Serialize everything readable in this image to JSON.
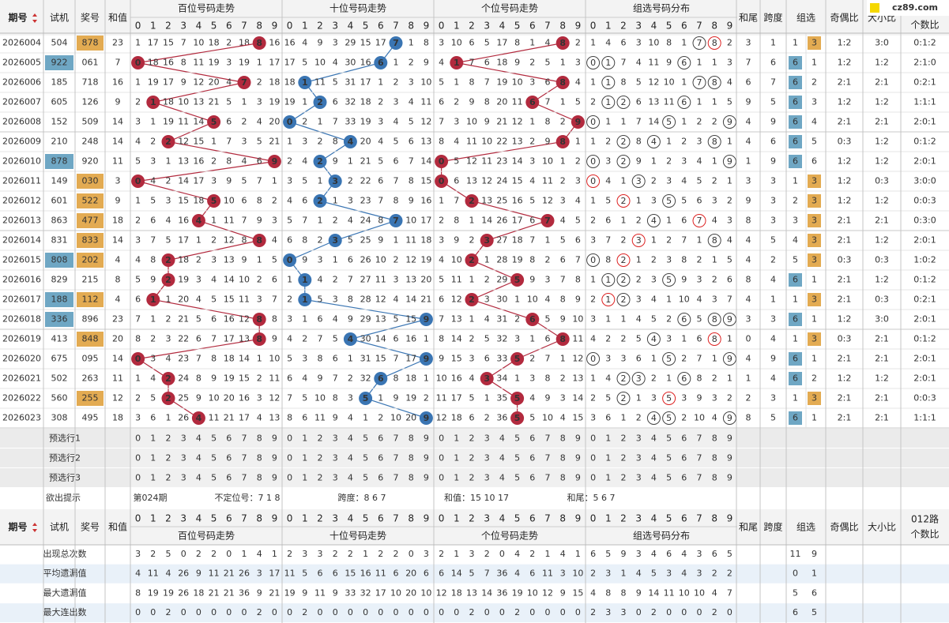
{
  "header": {
    "issue": "期号",
    "test": "试机",
    "draw": "奖号",
    "sum": "和值",
    "sections": [
      "百位号码走势",
      "十位号码走势",
      "个位号码走势",
      "组选号码分布"
    ],
    "tail": "和尾",
    "span": "跨度",
    "zx": "组选",
    "oe": "奇偶比",
    "bs": "大小比",
    "r012a": "012路",
    "r012b": "个数比",
    "logo": "cz89.com"
  },
  "digits": [
    "0",
    "1",
    "2",
    "3",
    "4",
    "5",
    "6",
    "7",
    "8",
    "9"
  ],
  "rows": [
    {
      "issue": "2026004",
      "test": "504",
      "draw": "878",
      "sum": 23,
      "bai": [
        1,
        17,
        15,
        7,
        10,
        18,
        2,
        18,
        8,
        16
      ],
      "shi": [
        16,
        4,
        9,
        3,
        29,
        15,
        17,
        7,
        1,
        8
      ],
      "ge": [
        3,
        10,
        6,
        5,
        17,
        8,
        1,
        4,
        8,
        2
      ],
      "zu": [
        1,
        4,
        6,
        3,
        10,
        8,
        1,
        7,
        8,
        2
      ],
      "tail": 3,
      "span": 1,
      "zx": [
        1,
        3
      ],
      "oe": "1:2",
      "bs": "3:0",
      "r012": "0:1:2"
    },
    {
      "issue": "2026005",
      "test": "922",
      "draw": "061",
      "sum": 7,
      "bai": [
        0,
        18,
        16,
        8,
        11,
        19,
        3,
        19,
        1,
        17
      ],
      "shi": [
        17,
        5,
        10,
        4,
        30,
        16,
        6,
        1,
        2,
        9
      ],
      "ge": [
        4,
        1,
        7,
        6,
        18,
        9,
        2,
        5,
        1,
        3
      ],
      "zu": [
        0,
        1,
        7,
        4,
        11,
        9,
        6,
        1,
        1,
        3
      ],
      "tail": 7,
      "span": 6,
      "zx": [
        6,
        1
      ],
      "oe": "1:2",
      "bs": "1:2",
      "r012": "2:1:0"
    },
    {
      "issue": "2026006",
      "test": "185",
      "draw": "718",
      "sum": 16,
      "bai": [
        1,
        19,
        17,
        9,
        12,
        20,
        4,
        7,
        2,
        18
      ],
      "shi": [
        18,
        1,
        11,
        5,
        31,
        17,
        1,
        2,
        3,
        10
      ],
      "ge": [
        5,
        1,
        8,
        7,
        19,
        10,
        3,
        6,
        8,
        4
      ],
      "zu": [
        1,
        1,
        8,
        5,
        12,
        10,
        1,
        7,
        8,
        4
      ],
      "tail": 6,
      "span": 7,
      "zx": [
        6,
        2
      ],
      "oe": "2:1",
      "bs": "2:1",
      "r012": "0:2:1"
    },
    {
      "issue": "2026007",
      "test": "605",
      "draw": "126",
      "sum": 9,
      "bai": [
        2,
        1,
        18,
        10,
        13,
        21,
        5,
        1,
        3,
        19
      ],
      "shi": [
        19,
        1,
        2,
        6,
        32,
        18,
        2,
        3,
        4,
        11
      ],
      "ge": [
        6,
        2,
        9,
        8,
        20,
        11,
        6,
        7,
        1,
        5
      ],
      "zu": [
        2,
        1,
        2,
        6,
        13,
        11,
        6,
        1,
        1,
        5
      ],
      "tail": 9,
      "span": 5,
      "zx": [
        6,
        3
      ],
      "oe": "1:2",
      "bs": "1:2",
      "r012": "1:1:1"
    },
    {
      "issue": "2026008",
      "test": "152",
      "draw": "509",
      "sum": 14,
      "bai": [
        3,
        1,
        19,
        11,
        14,
        5,
        6,
        2,
        4,
        20
      ],
      "shi": [
        0,
        2,
        1,
        7,
        33,
        19,
        3,
        4,
        5,
        12
      ],
      "ge": [
        7,
        3,
        10,
        9,
        21,
        12,
        1,
        8,
        2,
        9
      ],
      "zu": [
        0,
        1,
        1,
        7,
        14,
        5,
        1,
        2,
        2,
        9
      ],
      "tail": 4,
      "span": 9,
      "zx": [
        6,
        4
      ],
      "oe": "2:1",
      "bs": "2:1",
      "r012": "2:0:1"
    },
    {
      "issue": "2026009",
      "test": "210",
      "draw": "248",
      "sum": 14,
      "bai": [
        4,
        2,
        2,
        12,
        15,
        1,
        7,
        3,
        5,
        21
      ],
      "shi": [
        1,
        3,
        2,
        8,
        4,
        20,
        4,
        5,
        6,
        13
      ],
      "ge": [
        8,
        4,
        11,
        10,
        22,
        13,
        2,
        9,
        8,
        1
      ],
      "zu": [
        1,
        2,
        2,
        8,
        4,
        1,
        2,
        3,
        8,
        1
      ],
      "tail": 4,
      "span": 6,
      "zx": [
        6,
        5
      ],
      "oe": "0:3",
      "bs": "1:2",
      "r012": "0:1:2"
    },
    {
      "issue": "2026010",
      "test": "878",
      "draw": "920",
      "sum": 11,
      "bai": [
        5,
        3,
        1,
        13,
        16,
        2,
        8,
        4,
        6,
        9
      ],
      "shi": [
        2,
        4,
        2,
        9,
        1,
        21,
        5,
        6,
        7,
        14
      ],
      "ge": [
        0,
        5,
        12,
        11,
        23,
        14,
        3,
        10,
        1,
        2
      ],
      "zu": [
        0,
        3,
        2,
        9,
        1,
        2,
        3,
        4,
        1,
        9
      ],
      "tail": 1,
      "span": 9,
      "zx": [
        6,
        6
      ],
      "oe": "1:2",
      "bs": "1:2",
      "r012": "2:0:1"
    },
    {
      "issue": "2026011",
      "test": "149",
      "draw": "030",
      "sum": 3,
      "bai": [
        0,
        4,
        2,
        14,
        17,
        3,
        9,
        5,
        7,
        1
      ],
      "shi": [
        3,
        5,
        1,
        3,
        2,
        22,
        6,
        7,
        8,
        15
      ],
      "ge": [
        0,
        6,
        13,
        12,
        24,
        15,
        4,
        11,
        2,
        3
      ],
      "zu": [
        0,
        4,
        1,
        3,
        2,
        3,
        4,
        5,
        2,
        1
      ],
      "tail": 3,
      "span": 3,
      "zx": [
        1,
        3
      ],
      "oe": "1:2",
      "bs": "0:3",
      "r012": "3:0:0"
    },
    {
      "issue": "2026012",
      "test": "601",
      "draw": "522",
      "sum": 9,
      "bai": [
        1,
        5,
        3,
        15,
        18,
        5,
        10,
        6,
        8,
        2
      ],
      "shi": [
        4,
        6,
        2,
        1,
        3,
        23,
        7,
        8,
        9,
        16
      ],
      "ge": [
        1,
        7,
        2,
        13,
        25,
        16,
        5,
        12,
        3,
        4
      ],
      "zu": [
        1,
        5,
        2,
        1,
        3,
        5,
        5,
        6,
        3,
        2
      ],
      "tail": 9,
      "span": 3,
      "zx": [
        2,
        3
      ],
      "oe": "1:2",
      "bs": "1:2",
      "r012": "0:0:3"
    },
    {
      "issue": "2026013",
      "test": "863",
      "draw": "477",
      "sum": 18,
      "bai": [
        2,
        6,
        4,
        16,
        4,
        1,
        11,
        7,
        9,
        3
      ],
      "shi": [
        5,
        7,
        1,
        2,
        4,
        24,
        8,
        7,
        10,
        17
      ],
      "ge": [
        2,
        8,
        1,
        14,
        26,
        17,
        6,
        7,
        4,
        5
      ],
      "zu": [
        2,
        6,
        1,
        2,
        4,
        1,
        6,
        7,
        4,
        3
      ],
      "tail": 8,
      "span": 3,
      "zx": [
        3,
        3
      ],
      "oe": "2:1",
      "bs": "2:1",
      "r012": "0:3:0"
    },
    {
      "issue": "2026014",
      "test": "831",
      "draw": "833",
      "sum": 14,
      "bai": [
        3,
        7,
        5,
        17,
        1,
        2,
        12,
        8,
        8,
        4
      ],
      "shi": [
        6,
        8,
        2,
        3,
        5,
        25,
        9,
        1,
        11,
        18
      ],
      "ge": [
        3,
        9,
        2,
        3,
        27,
        18,
        7,
        1,
        5,
        6
      ],
      "zu": [
        3,
        7,
        2,
        3,
        1,
        2,
        7,
        1,
        8,
        4
      ],
      "tail": 4,
      "span": 5,
      "zx": [
        4,
        3
      ],
      "oe": "2:1",
      "bs": "1:2",
      "r012": "2:0:1"
    },
    {
      "issue": "2026015",
      "test": "808",
      "draw": "202",
      "sum": 4,
      "bai": [
        4,
        8,
        2,
        18,
        2,
        3,
        13,
        9,
        1,
        5
      ],
      "shi": [
        0,
        9,
        3,
        1,
        6,
        26,
        10,
        2,
        12,
        19
      ],
      "ge": [
        4,
        10,
        2,
        1,
        28,
        19,
        8,
        2,
        6,
        7
      ],
      "zu": [
        0,
        8,
        2,
        1,
        2,
        3,
        8,
        2,
        1,
        5
      ],
      "tail": 4,
      "span": 2,
      "zx": [
        5,
        3
      ],
      "oe": "0:3",
      "bs": "0:3",
      "r012": "1:0:2"
    },
    {
      "issue": "2026016",
      "test": "829",
      "draw": "215",
      "sum": 8,
      "bai": [
        5,
        9,
        2,
        19,
        3,
        4,
        14,
        10,
        2,
        6
      ],
      "shi": [
        1,
        1,
        4,
        2,
        7,
        27,
        11,
        3,
        13,
        20
      ],
      "ge": [
        5,
        11,
        1,
        2,
        29,
        5,
        9,
        3,
        7,
        8
      ],
      "zu": [
        1,
        1,
        2,
        2,
        3,
        5,
        9,
        3,
        2,
        6
      ],
      "tail": 8,
      "span": 4,
      "zx": [
        6,
        1
      ],
      "oe": "2:1",
      "bs": "1:2",
      "r012": "0:1:2"
    },
    {
      "issue": "2026017",
      "test": "188",
      "draw": "112",
      "sum": 4,
      "bai": [
        6,
        1,
        1,
        20,
        4,
        5,
        15,
        11,
        3,
        7
      ],
      "shi": [
        2,
        1,
        5,
        3,
        8,
        28,
        12,
        4,
        14,
        21
      ],
      "ge": [
        6,
        12,
        2,
        3,
        30,
        1,
        10,
        4,
        8,
        9
      ],
      "zu": [
        2,
        1,
        2,
        3,
        4,
        1,
        10,
        4,
        3,
        7
      ],
      "tail": 4,
      "span": 1,
      "zx": [
        1,
        3
      ],
      "oe": "2:1",
      "bs": "0:3",
      "r012": "0:2:1"
    },
    {
      "issue": "2026018",
      "test": "336",
      "draw": "896",
      "sum": 23,
      "bai": [
        7,
        1,
        2,
        21,
        5,
        6,
        16,
        12,
        8,
        8
      ],
      "shi": [
        3,
        1,
        6,
        4,
        9,
        29,
        13,
        5,
        15,
        9
      ],
      "ge": [
        7,
        13,
        1,
        4,
        31,
        2,
        6,
        5,
        9,
        10
      ],
      "zu": [
        3,
        1,
        1,
        4,
        5,
        2,
        6,
        5,
        8,
        9
      ],
      "tail": 3,
      "span": 3,
      "zx": [
        6,
        1
      ],
      "oe": "1:2",
      "bs": "3:0",
      "r012": "2:0:1"
    },
    {
      "issue": "2026019",
      "test": "413",
      "draw": "848",
      "sum": 20,
      "bai": [
        8,
        2,
        3,
        22,
        6,
        7,
        17,
        13,
        8,
        9
      ],
      "shi": [
        4,
        2,
        7,
        5,
        4,
        30,
        14,
        6,
        16,
        1
      ],
      "ge": [
        8,
        14,
        2,
        5,
        32,
        3,
        1,
        6,
        8,
        11
      ],
      "zu": [
        4,
        2,
        2,
        5,
        4,
        3,
        1,
        6,
        8,
        1
      ],
      "tail": 0,
      "span": 4,
      "zx": [
        1,
        3
      ],
      "oe": "0:3",
      "bs": "2:1",
      "r012": "0:1:2"
    },
    {
      "issue": "2026020",
      "test": "675",
      "draw": "095",
      "sum": 14,
      "bai": [
        0,
        3,
        4,
        23,
        7,
        8,
        18,
        14,
        1,
        10
      ],
      "shi": [
        5,
        3,
        8,
        6,
        1,
        31,
        15,
        7,
        17,
        9
      ],
      "ge": [
        9,
        15,
        3,
        6,
        33,
        5,
        2,
        7,
        1,
        12
      ],
      "zu": [
        0,
        3,
        3,
        6,
        1,
        5,
        2,
        7,
        1,
        9
      ],
      "tail": 4,
      "span": 9,
      "zx": [
        6,
        1
      ],
      "oe": "2:1",
      "bs": "2:1",
      "r012": "2:0:1"
    },
    {
      "issue": "2026021",
      "test": "502",
      "draw": "263",
      "sum": 11,
      "bai": [
        1,
        4,
        2,
        24,
        8,
        9,
        19,
        15,
        2,
        11
      ],
      "shi": [
        6,
        4,
        9,
        7,
        2,
        32,
        6,
        8,
        18,
        1
      ],
      "ge": [
        10,
        16,
        4,
        3,
        34,
        1,
        3,
        8,
        2,
        13
      ],
      "zu": [
        1,
        4,
        2,
        3,
        2,
        1,
        6,
        8,
        2,
        1
      ],
      "tail": 1,
      "span": 4,
      "zx": [
        6,
        2
      ],
      "oe": "1:2",
      "bs": "1:2",
      "r012": "2:0:1"
    },
    {
      "issue": "2026022",
      "test": "560",
      "draw": "255",
      "sum": 12,
      "bai": [
        2,
        5,
        2,
        25,
        9,
        10,
        20,
        16,
        3,
        12
      ],
      "shi": [
        7,
        5,
        10,
        8,
        3,
        5,
        1,
        9,
        19,
        2
      ],
      "ge": [
        11,
        17,
        5,
        1,
        35,
        5,
        4,
        9,
        3,
        14
      ],
      "zu": [
        2,
        5,
        2,
        1,
        3,
        5,
        3,
        9,
        3,
        2
      ],
      "tail": 2,
      "span": 3,
      "zx": [
        1,
        3
      ],
      "oe": "2:1",
      "bs": "2:1",
      "r012": "0:0:3"
    },
    {
      "issue": "2026023",
      "test": "308",
      "draw": "495",
      "sum": 18,
      "bai": [
        3,
        6,
        1,
        26,
        4,
        11,
        21,
        17,
        4,
        13
      ],
      "shi": [
        8,
        6,
        11,
        9,
        4,
        1,
        2,
        10,
        20,
        9
      ],
      "ge": [
        12,
        18,
        6,
        2,
        36,
        5,
        5,
        10,
        4,
        15
      ],
      "zu": [
        3,
        6,
        1,
        2,
        4,
        5,
        2,
        10,
        4,
        9
      ],
      "tail": 8,
      "span": 5,
      "zx": [
        6,
        1
      ],
      "oe": "2:1",
      "bs": "2:1",
      "r012": "1:1:1"
    }
  ],
  "preselect": [
    "预选行1",
    "预选行2",
    "预选行3"
  ],
  "hint": {
    "label": "欲出提示",
    "issue": "第024期",
    "items": [
      "不定位号：7 1 8",
      "跨度：8 6 7",
      "和值：15 10 17",
      "和尾：5 6 7"
    ]
  },
  "stats": [
    {
      "label": "出现总次数",
      "bai": [
        3,
        2,
        5,
        0,
        2,
        2,
        0,
        1,
        4,
        1
      ],
      "shi": [
        2,
        3,
        3,
        2,
        2,
        1,
        2,
        2,
        0,
        3
      ],
      "ge": [
        2,
        1,
        3,
        2,
        0,
        4,
        2,
        1,
        4,
        1
      ],
      "zu": [
        6,
        5,
        9,
        3,
        4,
        6,
        4,
        3,
        6,
        5
      ],
      "zx": [
        11,
        9
      ]
    },
    {
      "label": "平均遗漏值",
      "bai": [
        4,
        11,
        4,
        26,
        9,
        11,
        21,
        26,
        3,
        17
      ],
      "shi": [
        11,
        5,
        6,
        6,
        15,
        16,
        11,
        6,
        20,
        6
      ],
      "ge": [
        6,
        14,
        5,
        7,
        36,
        4,
        6,
        11,
        3,
        10
      ],
      "zu": [
        2,
        3,
        1,
        4,
        5,
        3,
        4,
        3,
        2,
        2
      ],
      "zx": [
        0,
        1
      ]
    },
    {
      "label": "最大遗漏值",
      "bai": [
        8,
        19,
        19,
        26,
        18,
        21,
        21,
        36,
        9,
        21
      ],
      "shi": [
        19,
        9,
        11,
        9,
        33,
        32,
        17,
        10,
        20,
        10
      ],
      "ge": [
        12,
        18,
        13,
        14,
        36,
        19,
        10,
        12,
        9,
        15
      ],
      "zu": [
        4,
        8,
        8,
        9,
        14,
        11,
        10,
        10,
        4,
        7
      ],
      "zx": [
        5,
        6
      ]
    },
    {
      "label": "最大连出数",
      "bai": [
        0,
        0,
        2,
        0,
        0,
        0,
        0,
        0,
        2,
        0
      ],
      "shi": [
        0,
        2,
        0,
        0,
        0,
        0,
        0,
        0,
        0,
        0
      ],
      "ge": [
        0,
        0,
        2,
        0,
        0,
        2,
        0,
        0,
        0,
        0
      ],
      "zu": [
        2,
        3,
        3,
        0,
        2,
        0,
        0,
        0,
        2,
        0
      ],
      "zx": [
        6,
        5
      ]
    }
  ]
}
